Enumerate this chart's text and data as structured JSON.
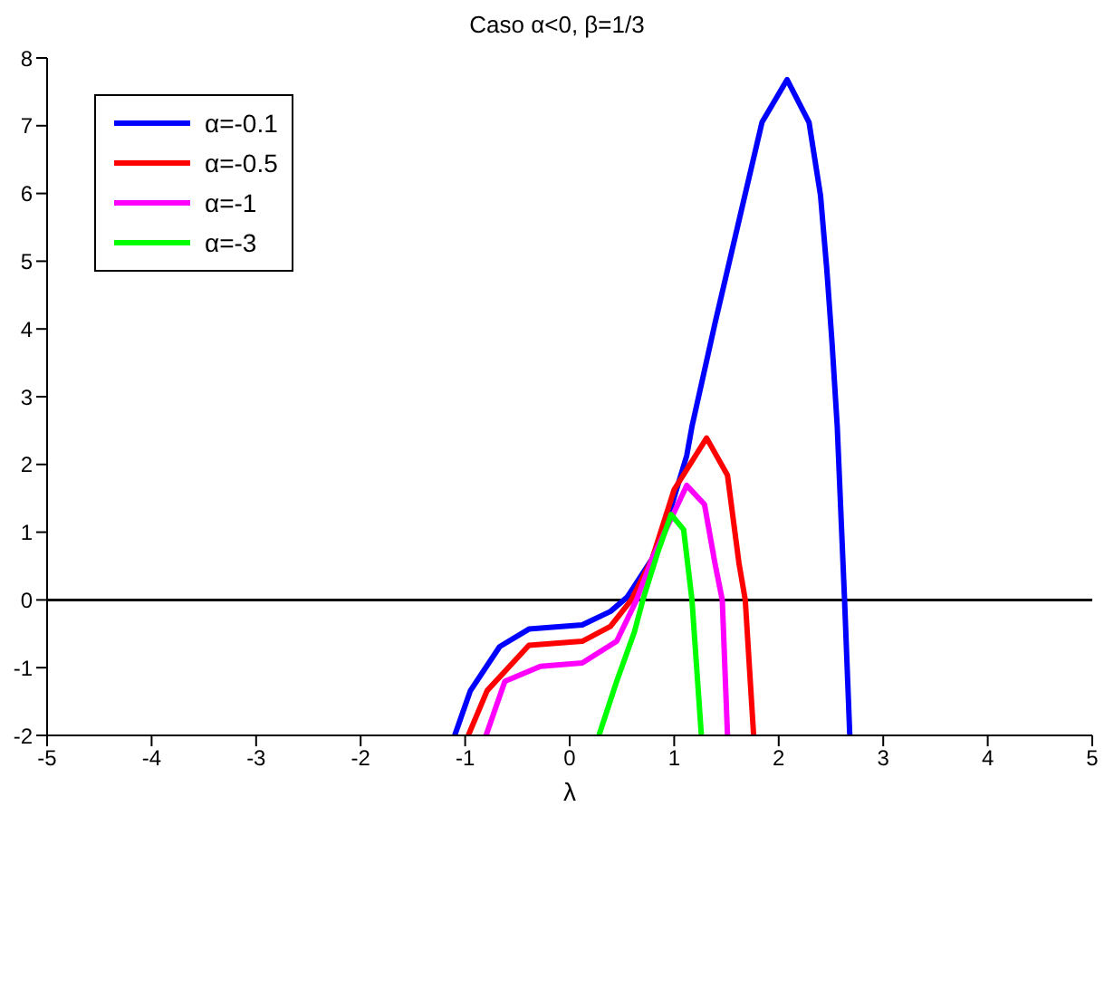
{
  "chart_data": {
    "type": "line",
    "title": "Caso  α<0, β=1/3",
    "xlabel": "λ",
    "xlim": [
      -5,
      5
    ],
    "xticks": [
      -5,
      -4,
      -3,
      -2,
      -1,
      0,
      1,
      2,
      3,
      4,
      5
    ],
    "ylim": [
      -2,
      8
    ],
    "yticks": [
      -2,
      -1,
      0,
      1,
      2,
      3,
      4,
      5,
      6,
      7,
      8
    ],
    "grid": false,
    "legend": "top left",
    "marker": "none",
    "line_style": "solid",
    "ref_lines": [
      {
        "axis": "y",
        "value": 0,
        "color": "#000000"
      }
    ],
    "series": [
      {
        "name": "α=-0.1",
        "color": "#0000ff",
        "x": [
          -1.1,
          -0.95,
          -0.67,
          -0.39,
          0.12,
          0.39,
          0.55,
          0.79,
          0.95,
          1.12,
          1.17,
          1.39,
          1.62,
          1.84,
          2.08,
          2.29,
          2.4,
          2.46,
          2.51,
          2.56,
          2.63,
          2.68
        ],
        "values": [
          -2,
          -1.34,
          -0.69,
          -0.43,
          -0.37,
          -0.17,
          0.04,
          0.61,
          1.26,
          2.13,
          2.56,
          4.08,
          5.6,
          7.05,
          7.68,
          7.05,
          5.97,
          4.88,
          3.8,
          2.56,
          0,
          -2
        ]
      },
      {
        "name": "α=-0.5",
        "color": "#ff0000",
        "x": [
          -0.97,
          -0.79,
          -0.39,
          0.12,
          0.39,
          0.59,
          0.79,
          1.0,
          1.31,
          1.51,
          1.62,
          1.68,
          1.76
        ],
        "values": [
          -2,
          -1.34,
          -0.67,
          -0.61,
          -0.39,
          0,
          0.61,
          1.63,
          2.39,
          1.84,
          0.54,
          0,
          -2
        ]
      },
      {
        "name": "α=-1",
        "color": "#ff00ff",
        "x": [
          -0.8,
          -0.62,
          -0.28,
          0.12,
          0.45,
          0.64,
          0.79,
          1.12,
          1.29,
          1.39,
          1.46,
          1.51
        ],
        "values": [
          -2,
          -1.2,
          -0.98,
          -0.93,
          -0.61,
          0,
          0.61,
          1.69,
          1.41,
          0.54,
          0,
          -2
        ]
      },
      {
        "name": "α=-3",
        "color": "#00ff00",
        "x": [
          0.28,
          0.45,
          0.62,
          0.7,
          0.84,
          0.97,
          1.09,
          1.17,
          1.26
        ],
        "values": [
          -2,
          -1.2,
          -0.47,
          0,
          0.69,
          1.26,
          1.04,
          0,
          -2
        ]
      }
    ]
  }
}
